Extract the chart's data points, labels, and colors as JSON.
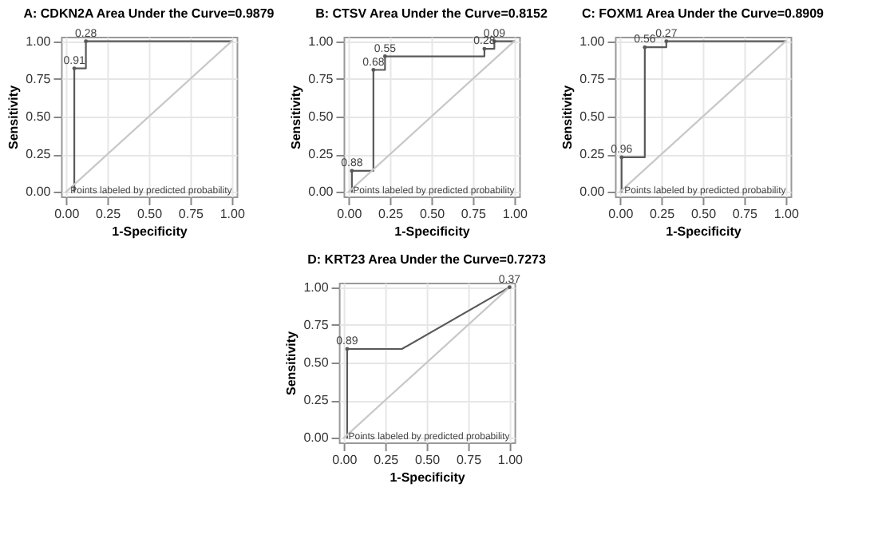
{
  "chart_data": [
    {
      "type": "line",
      "title": "A: CDKN2A  Area Under the Curve=0.9879",
      "xlabel": "1-Specificity",
      "ylabel": "Sensitivity",
      "xlim": [
        -0.03,
        1.03
      ],
      "ylim": [
        -0.03,
        1.03
      ],
      "xticks": [
        {
          "value": 0,
          "label": "0.00"
        },
        {
          "value": 0.25,
          "label": "0.25"
        },
        {
          "value": 0.5,
          "label": "0.50"
        },
        {
          "value": 0.75,
          "label": "0.75"
        },
        {
          "value": 1,
          "label": "1.00"
        }
      ],
      "yticks": [
        {
          "value": 0,
          "label": "0.00"
        },
        {
          "value": 0.25,
          "label": "0.25"
        },
        {
          "value": 0.5,
          "label": "0.50"
        },
        {
          "value": 0.75,
          "label": "0.75"
        },
        {
          "value": 1,
          "label": "1.00"
        }
      ],
      "grid": true,
      "series": [
        {
          "color": "#595959",
          "x": [
            0.05,
            0.05,
            0.12,
            0.12,
            1
          ],
          "values": [
            0,
            0.82,
            0.82,
            1,
            1
          ]
        },
        {
          "color": "#c8c8c8",
          "x": [
            0,
            1
          ],
          "values": [
            0,
            1
          ]
        }
      ],
      "annotations": [
        {
          "text": "0.91",
          "x": 0.05,
          "y": 0.82
        },
        {
          "text": "0.28",
          "x": 0.12,
          "y": 1
        },
        "Points labeled by predicted probability"
      ]
    },
    {
      "type": "line",
      "title": "B: CTSV Area Under the Curve=0.8152",
      "xlabel": "1-Specificity",
      "ylabel": "Sensitivity",
      "xlim": [
        -0.03,
        1.03
      ],
      "ylim": [
        -0.03,
        1.03
      ],
      "xticks": [
        {
          "value": 0,
          "label": "0.00"
        },
        {
          "value": 0.25,
          "label": "0.25"
        },
        {
          "value": 0.5,
          "label": "0.50"
        },
        {
          "value": 0.75,
          "label": "0.75"
        },
        {
          "value": 1,
          "label": "1.00"
        }
      ],
      "yticks": [
        {
          "value": 0,
          "label": "0.00"
        },
        {
          "value": 0.25,
          "label": "0.25"
        },
        {
          "value": 0.5,
          "label": "0.50"
        },
        {
          "value": 0.75,
          "label": "0.75"
        },
        {
          "value": 1,
          "label": "1.00"
        }
      ],
      "grid": true,
      "series": [
        {
          "color": "#595959",
          "x": [
            0.02,
            0.02,
            0.15,
            0.15,
            0.22,
            0.22,
            0.82,
            0.82,
            0.88,
            0.88,
            1
          ],
          "values": [
            0,
            0.14,
            0.14,
            0.81,
            0.81,
            0.9,
            0.9,
            0.95,
            0.95,
            1,
            1
          ]
        },
        {
          "color": "#c8c8c8",
          "x": [
            0,
            1
          ],
          "values": [
            0,
            1
          ]
        }
      ],
      "annotations": [
        {
          "text": "0.88",
          "x": 0.02,
          "y": 0.14
        },
        {
          "text": "0.68",
          "x": 0.15,
          "y": 0.81
        },
        {
          "text": "0.55",
          "x": 0.22,
          "y": 0.9
        },
        {
          "text": "0.28",
          "x": 0.82,
          "y": 0.95
        },
        {
          "text": "0.09",
          "x": 0.88,
          "y": 1
        },
        "Points labeled by predicted probability"
      ]
    },
    {
      "type": "line",
      "title": "C: FOXM1  Area Under the Curve=0.8909",
      "xlabel": "1-Specificity",
      "ylabel": "Sensitivity",
      "xlim": [
        -0.03,
        1.03
      ],
      "ylim": [
        -0.03,
        1.03
      ],
      "xticks": [
        {
          "value": 0,
          "label": "0.00"
        },
        {
          "value": 0.25,
          "label": "0.25"
        },
        {
          "value": 0.5,
          "label": "0.50"
        },
        {
          "value": 0.75,
          "label": "0.75"
        },
        {
          "value": 1,
          "label": "1.00"
        }
      ],
      "yticks": [
        {
          "value": 0,
          "label": "0.00"
        },
        {
          "value": 0.25,
          "label": "0.25"
        },
        {
          "value": 0.5,
          "label": "0.50"
        },
        {
          "value": 0.75,
          "label": "0.75"
        },
        {
          "value": 1,
          "label": "1.00"
        }
      ],
      "grid": true,
      "series": [
        {
          "color": "#595959",
          "x": [
            0.01,
            0.01,
            0.15,
            0.15,
            0.28,
            0.28,
            1
          ],
          "values": [
            0,
            0.23,
            0.23,
            0.96,
            0.96,
            1,
            1
          ]
        },
        {
          "color": "#c8c8c8",
          "x": [
            0,
            1
          ],
          "values": [
            0,
            1
          ]
        }
      ],
      "annotations": [
        {
          "text": "0.96",
          "x": 0.01,
          "y": 0.23
        },
        {
          "text": "0.56",
          "x": 0.15,
          "y": 0.96
        },
        {
          "text": "0.27",
          "x": 0.28,
          "y": 1
        },
        "Points labeled by predicted probability"
      ]
    },
    {
      "type": "line",
      "title": "D: KRT23  Area Under the Curve=0.7273",
      "xlabel": "1-Specificity",
      "ylabel": "Sensitivity",
      "xlim": [
        -0.03,
        1.03
      ],
      "ylim": [
        -0.03,
        1.03
      ],
      "xticks": [
        {
          "value": 0,
          "label": "0.00"
        },
        {
          "value": 0.25,
          "label": "0.25"
        },
        {
          "value": 0.5,
          "label": "0.50"
        },
        {
          "value": 0.75,
          "label": "0.75"
        },
        {
          "value": 1,
          "label": "1.00"
        }
      ],
      "yticks": [
        {
          "value": 0,
          "label": "0.00"
        },
        {
          "value": 0.25,
          "label": "0.25"
        },
        {
          "value": 0.5,
          "label": "0.50"
        },
        {
          "value": 0.75,
          "label": "0.75"
        },
        {
          "value": 1,
          "label": "1.00"
        }
      ],
      "grid": true,
      "series": [
        {
          "color": "#595959",
          "x": [
            0.02,
            0.02,
            0.35,
            1
          ],
          "values": [
            0,
            0.59,
            0.59,
            1
          ]
        },
        {
          "color": "#c8c8c8",
          "x": [
            0,
            1
          ],
          "values": [
            0,
            1
          ]
        }
      ],
      "annotations": [
        {
          "text": "0.89",
          "x": 0.02,
          "y": 0.59
        },
        {
          "text": "0.37",
          "x": 1,
          "y": 1
        },
        "Points labeled by predicted probability"
      ]
    }
  ]
}
